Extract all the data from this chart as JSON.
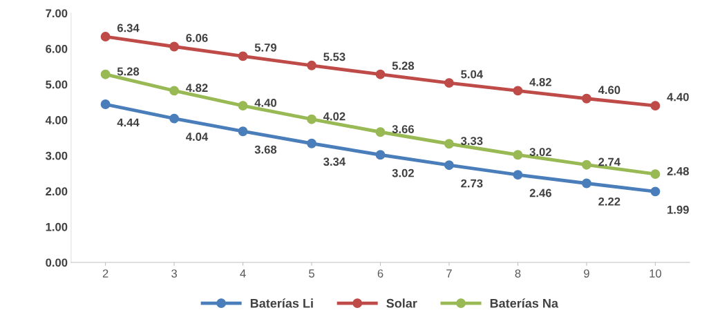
{
  "chart_data": {
    "type": "line",
    "categories": [
      "2",
      "3",
      "4",
      "5",
      "6",
      "7",
      "8",
      "9",
      "10"
    ],
    "series": [
      {
        "name": "Baterías Li",
        "color": "#4a7ebb",
        "values": [
          4.44,
          4.04,
          3.68,
          3.34,
          3.02,
          2.73,
          2.46,
          2.22,
          1.99
        ],
        "value_labels": [
          "4.44",
          "4.04",
          "3.68",
          "3.34",
          "3.02",
          "2.73",
          "2.46",
          "2.22",
          "1.99"
        ]
      },
      {
        "name": "Solar",
        "color": "#be4b48",
        "values": [
          6.34,
          6.06,
          5.79,
          5.53,
          5.28,
          5.04,
          4.82,
          4.6,
          4.4
        ],
        "value_labels": [
          "6.34",
          "6.06",
          "5.79",
          "5.53",
          "5.28",
          "5.04",
          "4.82",
          "4.60",
          "4.40"
        ]
      },
      {
        "name": "Baterías Na",
        "color": "#98b954",
        "values": [
          5.28,
          4.82,
          4.4,
          4.02,
          3.66,
          3.33,
          3.02,
          2.74,
          2.48
        ],
        "value_labels": [
          "5.28",
          "4.82",
          "4.40",
          "4.02",
          "3.66",
          "3.33",
          "3.02",
          "2.74",
          "2.48"
        ]
      }
    ],
    "ylim": [
      0,
      7
    ],
    "yticks": [
      {
        "value": 0,
        "label": "0.00"
      },
      {
        "value": 1,
        "label": "1.00"
      },
      {
        "value": 2,
        "label": "2.00"
      },
      {
        "value": 3,
        "label": "3.00"
      },
      {
        "value": 4,
        "label": "4.00"
      },
      {
        "value": 5,
        "label": "5.00"
      },
      {
        "value": 6,
        "label": "6.00"
      },
      {
        "value": 7,
        "label": "7.00"
      }
    ],
    "grid": false,
    "legend": "bottom",
    "marker": "circle",
    "line_style": "solid"
  }
}
